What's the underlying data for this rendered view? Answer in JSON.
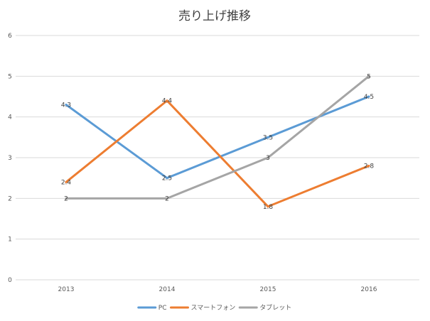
{
  "chart_data": {
    "type": "line",
    "title": "売り上げ推移",
    "xlabel": "",
    "ylabel": "",
    "categories": [
      "2013",
      "2014",
      "2015",
      "2016"
    ],
    "ylim": [
      0,
      6
    ],
    "yticks": [
      "0",
      "1",
      "2",
      "3",
      "4",
      "5",
      "6"
    ],
    "grid": true,
    "legend_position": "bottom",
    "data_labels": true,
    "series": [
      {
        "name": "PC",
        "color": "#5B9BD5",
        "values": [
          4.3,
          2.5,
          3.5,
          4.5
        ],
        "labels": [
          "4.3",
          "2.5",
          "3.5",
          "4.5"
        ]
      },
      {
        "name": "スマートフォン",
        "color": "#ED7D31",
        "values": [
          2.4,
          4.4,
          1.8,
          2.8
        ],
        "labels": [
          "2.4",
          "4.4",
          "1.8",
          "2.8"
        ]
      },
      {
        "name": "タブレット",
        "color": "#A5A5A5",
        "values": [
          2,
          2,
          3,
          5
        ],
        "labels": [
          "2",
          "2",
          "3",
          "5"
        ]
      }
    ]
  }
}
